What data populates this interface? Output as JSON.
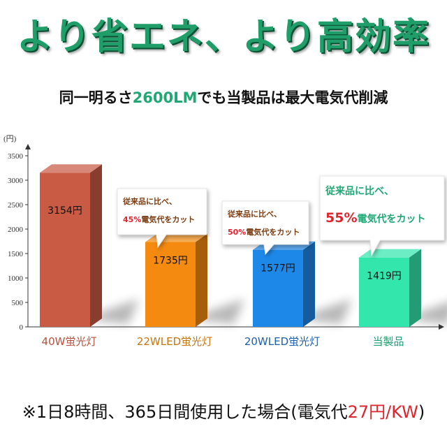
{
  "headline": "より省エネ、より高効率",
  "subtitle": {
    "before": "同一明るさ",
    "highlight": "2600LM",
    "after": "でも当製品は最大電気代削減"
  },
  "footnote": {
    "before": "※1日8時間、365日間使用した場合(電気代",
    "highlight": "27円/KW",
    "after": ")"
  },
  "chart_data": {
    "type": "bar",
    "ylabel": "(円)",
    "ylim": [
      0,
      3500
    ],
    "yticks": [
      0,
      500,
      1000,
      1500,
      2000,
      2500,
      3000,
      3500
    ],
    "categories": [
      "40W蛍光灯",
      "22WLED蛍光灯",
      "20WLED蛍光灯",
      "当製品"
    ],
    "values": [
      3154,
      1735,
      1577,
      1419
    ],
    "value_labels": [
      "3154円",
      "1735円",
      "1577円",
      "1419円"
    ],
    "colors": [
      "#c95a43",
      "#f48a10",
      "#1e88e8",
      "#33e6ac"
    ],
    "category_label_colors": [
      "#b5503d",
      "#c8740e",
      "#1d5fa8",
      "#1aa070"
    ],
    "callouts": [
      {
        "bar": 1,
        "line1": "従来品に比べ、",
        "pct": "45%",
        "rest": "電気代をカット"
      },
      {
        "bar": 2,
        "line1": "従来品に比べ、",
        "pct": "50%",
        "rest": "電気代をカット"
      },
      {
        "bar": 3,
        "line1": "従来品に比べ、",
        "pct": "55%",
        "rest": "電気代をカット"
      }
    ]
  }
}
